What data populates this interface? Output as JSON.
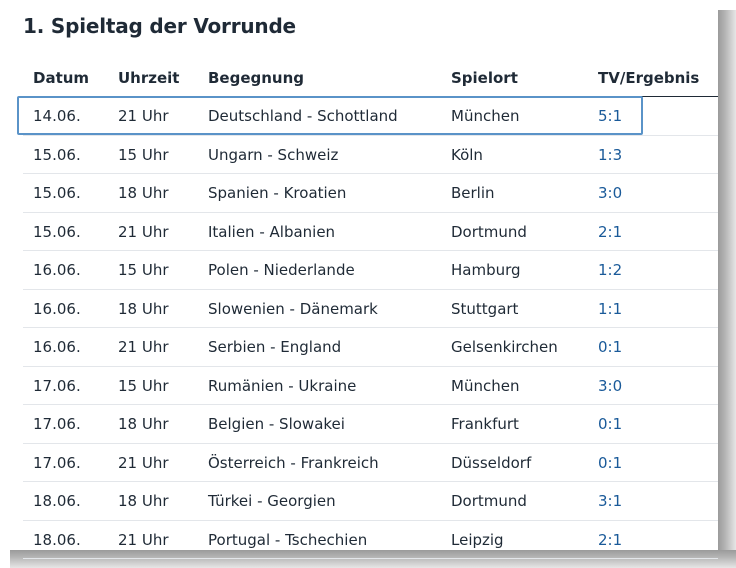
{
  "title": "1. Spieltag der Vorrunde",
  "columns": {
    "date": "Datum",
    "time": "Uhrzeit",
    "match": "Begegnung",
    "venue": "Spielort",
    "result": "TV/Ergebnis"
  },
  "colors": {
    "result_link": "#1a5a99",
    "highlight_border": "#5a93c8",
    "text": "#1f2a36"
  },
  "rows": [
    {
      "date": "14.06.",
      "time": "21 Uhr",
      "match": "Deutschland - Schottland",
      "venue": "München",
      "result": "5:1"
    },
    {
      "date": "15.06.",
      "time": "15 Uhr",
      "match": "Ungarn - Schweiz",
      "venue": "Köln",
      "result": "1:3"
    },
    {
      "date": "15.06.",
      "time": "18 Uhr",
      "match": "Spanien - Kroatien",
      "venue": "Berlin",
      "result": "3:0"
    },
    {
      "date": "15.06.",
      "time": "21 Uhr",
      "match": "Italien - Albanien",
      "venue": "Dortmund",
      "result": "2:1"
    },
    {
      "date": "16.06.",
      "time": "15 Uhr",
      "match": "Polen - Niederlande",
      "venue": "Hamburg",
      "result": "1:2"
    },
    {
      "date": "16.06.",
      "time": "18 Uhr",
      "match": "Slowenien - Dänemark",
      "venue": "Stuttgart",
      "result": "1:1"
    },
    {
      "date": "16.06.",
      "time": "21 Uhr",
      "match": "Serbien - England",
      "venue": "Gelsenkirchen",
      "result": "0:1"
    },
    {
      "date": "17.06.",
      "time": "15 Uhr",
      "match": "Rumänien - Ukraine",
      "venue": "München",
      "result": "3:0"
    },
    {
      "date": "17.06.",
      "time": "18 Uhr",
      "match": "Belgien - Slowakei",
      "venue": "Frankfurt",
      "result": "0:1"
    },
    {
      "date": "17.06.",
      "time": "21 Uhr",
      "match": "Österreich - Frankreich",
      "venue": "Düsseldorf",
      "result": "0:1"
    },
    {
      "date": "18.06.",
      "time": "18 Uhr",
      "match": "Türkei - Georgien",
      "venue": "Dortmund",
      "result": "3:1"
    },
    {
      "date": "18.06.",
      "time": "21 Uhr",
      "match": "Portugal - Tschechien",
      "venue": "Leipzig",
      "result": "2:1"
    }
  ],
  "highlighted_row": 0
}
